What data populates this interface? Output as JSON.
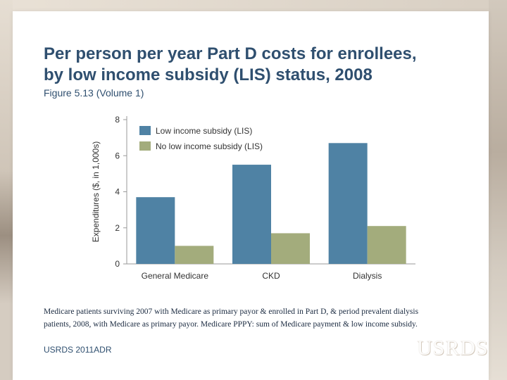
{
  "slide": {
    "title_lines": [
      "Per person per year Part D costs for enrollees,",
      "by low income subsidy (LIS) status, 2008"
    ],
    "subtitle": "Figure 5.13 (Volume 1)",
    "caption_lines": [
      "Medicare patients surviving 2007 with Medicare as primary payor & enrolled in Part D, & period prevalent dialysis",
      "patients, 2008, with Medicare as primary payor. Medicare PPPY: sum of Medicare payment & low income subsidy."
    ],
    "footer": "USRDS 2011ADR",
    "logo": "USRDS"
  },
  "chart_data": {
    "type": "bar",
    "title": "",
    "xlabel": "",
    "ylabel": "Expenditures ($, in 1,000s)",
    "categories": [
      "General Medicare",
      "CKD",
      "Dialysis"
    ],
    "series": [
      {
        "name": "Low income subsidy (LIS)",
        "values": [
          3.7,
          5.5,
          6.7
        ],
        "color": "#4f82a4"
      },
      {
        "name": "No low income subsidy (LIS)",
        "values": [
          1.0,
          1.7,
          2.1
        ],
        "color": "#a3ac7c"
      }
    ],
    "ylim": [
      0,
      8
    ],
    "yticks": [
      "0",
      "2",
      "4",
      "6",
      "8"
    ],
    "grid": false,
    "legend_position": "top-left"
  }
}
